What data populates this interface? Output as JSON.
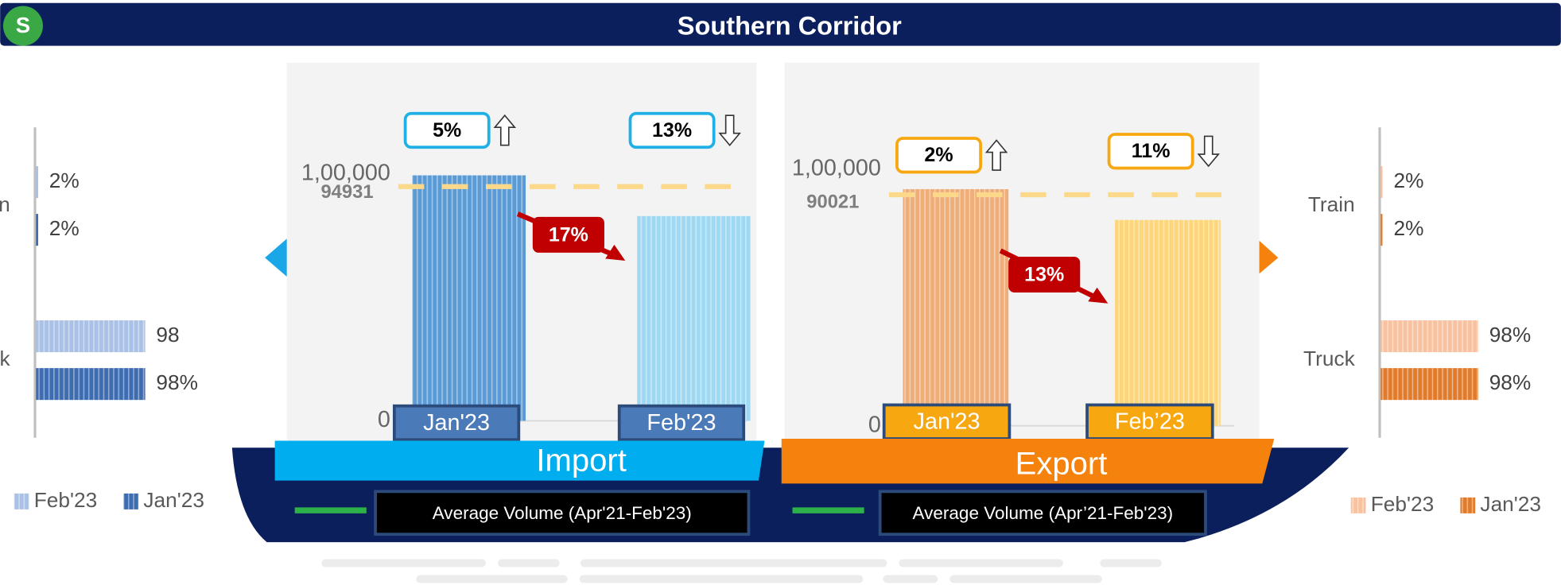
{
  "header": {
    "badge": "S",
    "title": "Southern Corridor"
  },
  "chart_data": [
    {
      "type": "hbar",
      "categories": [
        "Train",
        "Truck"
      ],
      "xlim": [
        0,
        100
      ],
      "series": [
        {
          "name": "Feb'23",
          "color": "#a9c1e6",
          "values": [
            2,
            98
          ],
          "value_labels": [
            "2%",
            "98"
          ]
        },
        {
          "name": "Jan'23",
          "color": "#3d6cb0",
          "values": [
            2,
            98
          ],
          "value_labels": [
            "2%",
            "98%"
          ]
        }
      ]
    },
    {
      "type": "bar",
      "title": "Import",
      "banner_color": "#00aeef",
      "categories": [
        "Jan'23",
        "Feb'23"
      ],
      "values": [
        99500,
        83000
      ],
      "colors": [
        "#5b9bd5",
        "#9fd8f2"
      ],
      "label_box_color": "#4a7ab8",
      "badge_color": "#1fb0e6",
      "ylim": [
        0,
        100000
      ],
      "yticks": [
        0,
        {
          "value": 100000,
          "label": "1,00,000"
        }
      ],
      "average": {
        "name": "Average Volume (Apr'21-Feb'23)",
        "value": 94931,
        "color": "#fcd98a"
      },
      "changes": [
        {
          "label": "5%",
          "direction": "up"
        },
        {
          "label": "13%",
          "direction": "down"
        }
      ],
      "change": "17%"
    },
    {
      "type": "bar",
      "title": "Export",
      "banner_color": "#f5820d",
      "categories": [
        "Jan'23",
        "Feb’23"
      ],
      "values": [
        92200,
        80200
      ],
      "colors": [
        "#efad78",
        "#fdd57a"
      ],
      "label_box_color": "#f7a70f",
      "badge_color": "#f7a70f",
      "ylim": [
        0,
        100000
      ],
      "yticks": [
        0,
        {
          "value": 100000,
          "label": "1,00,000"
        }
      ],
      "average": {
        "name": "Average Volume (Apr’21-Feb'23)",
        "value": 90021,
        "color": "#fcd98a"
      },
      "changes": [
        {
          "label": "2%",
          "direction": "up"
        },
        {
          "label": "11%",
          "direction": "down"
        }
      ],
      "change": "13%"
    },
    {
      "type": "hbar",
      "categories": [
        "Train",
        "Truck"
      ],
      "xlim": [
        0,
        100
      ],
      "series": [
        {
          "name": "Feb'23",
          "color": "#f8c2a0",
          "values": [
            2,
            98
          ],
          "value_labels": [
            "2%",
            "98%"
          ]
        },
        {
          "name": "Jan'23",
          "color": "#e07b2c",
          "values": [
            2,
            98
          ],
          "value_labels": [
            "2%",
            "98%"
          ]
        }
      ]
    }
  ]
}
